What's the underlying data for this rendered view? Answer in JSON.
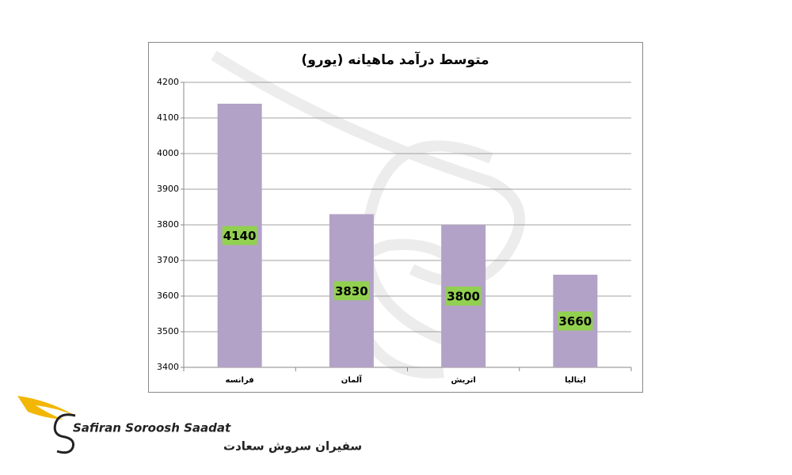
{
  "chart_data": {
    "type": "bar",
    "title": "متوسط درآمد ماهیانه (یورو)",
    "categories": [
      "فرانسه",
      "آلمان",
      "اتریش",
      "ایتالیا"
    ],
    "values": [
      4140,
      3830,
      3800,
      3660
    ],
    "color": "#b3a2c7",
    "label_color": "#92d050",
    "ylim": [
      3400,
      4200
    ],
    "yticks": [
      3400,
      3500,
      3600,
      3700,
      3800,
      3900,
      4000,
      4100,
      4200
    ],
    "grid": true
  },
  "logo": {
    "name_en": "Safiran Soroosh Saadat",
    "name_fa": "سفیران سروش سعادت"
  }
}
